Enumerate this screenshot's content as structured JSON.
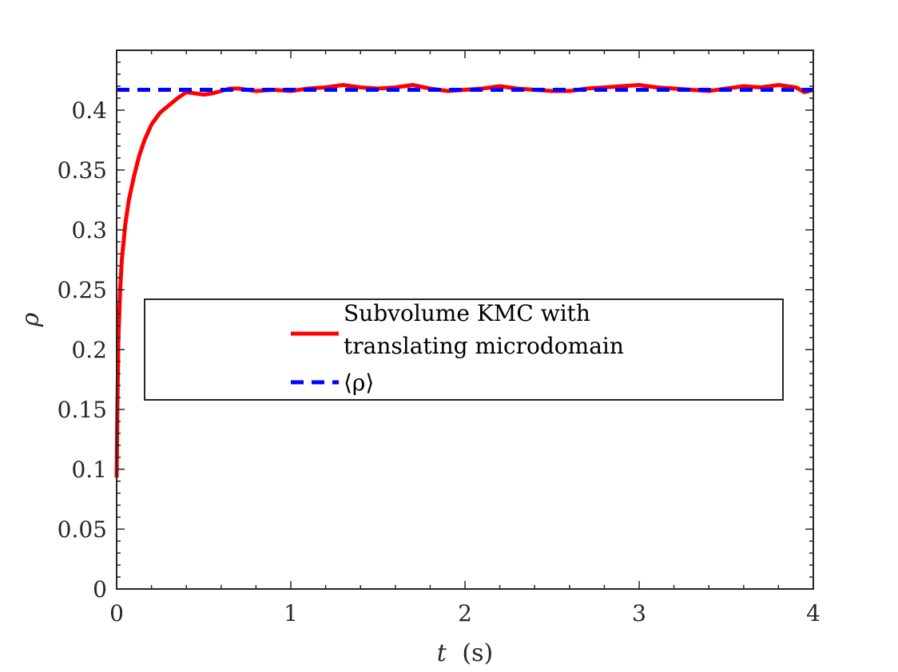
{
  "chart_data": {
    "type": "line",
    "title": "",
    "xlabel_var": "t",
    "xlabel_unit": "(s)",
    "ylabel": "ρ",
    "xlim": [
      0,
      4
    ],
    "ylim": [
      0,
      0.45
    ],
    "xticks": [
      0,
      1,
      2,
      3,
      4
    ],
    "xtick_labels": [
      "0",
      "1",
      "2",
      "3",
      "4"
    ],
    "yticks": [
      0,
      0.05,
      0.1,
      0.15,
      0.2,
      0.25,
      0.3,
      0.35,
      0.4
    ],
    "ytick_labels": [
      "0",
      "0.05",
      "0.1",
      "0.15",
      "0.2",
      "0.25",
      "0.3",
      "0.35",
      "0.4"
    ],
    "grid": false,
    "legend_position": "center",
    "series": [
      {
        "name_lines": [
          "Subvolume KMC with",
          "translating microdomain"
        ],
        "color": "#ff0000",
        "style": "solid",
        "x": [
          0,
          0.005,
          0.01,
          0.02,
          0.03,
          0.05,
          0.07,
          0.1,
          0.13,
          0.16,
          0.2,
          0.25,
          0.3,
          0.35,
          0.4,
          0.45,
          0.5,
          0.55,
          0.6,
          0.65,
          0.7,
          0.8,
          0.9,
          1.0,
          1.1,
          1.2,
          1.3,
          1.4,
          1.5,
          1.6,
          1.7,
          1.8,
          1.9,
          2.0,
          2.1,
          2.2,
          2.3,
          2.4,
          2.5,
          2.6,
          2.7,
          2.8,
          2.9,
          3.0,
          3.1,
          3.2,
          3.3,
          3.4,
          3.5,
          3.6,
          3.7,
          3.8,
          3.9,
          3.95,
          4.0
        ],
        "y": [
          0.093,
          0.16,
          0.21,
          0.25,
          0.275,
          0.305,
          0.325,
          0.345,
          0.362,
          0.375,
          0.388,
          0.398,
          0.404,
          0.41,
          0.415,
          0.414,
          0.413,
          0.414,
          0.416,
          0.418,
          0.418,
          0.416,
          0.417,
          0.416,
          0.418,
          0.419,
          0.421,
          0.419,
          0.418,
          0.419,
          0.421,
          0.418,
          0.416,
          0.417,
          0.418,
          0.42,
          0.418,
          0.417,
          0.416,
          0.416,
          0.418,
          0.419,
          0.42,
          0.421,
          0.419,
          0.418,
          0.417,
          0.416,
          0.418,
          0.42,
          0.419,
          0.421,
          0.419,
          0.415,
          0.417
        ]
      },
      {
        "name": "⟨ρ⟩",
        "color": "#0000ff",
        "style": "dashed",
        "x": [
          0,
          4
        ],
        "y": [
          0.417,
          0.417
        ]
      }
    ]
  }
}
